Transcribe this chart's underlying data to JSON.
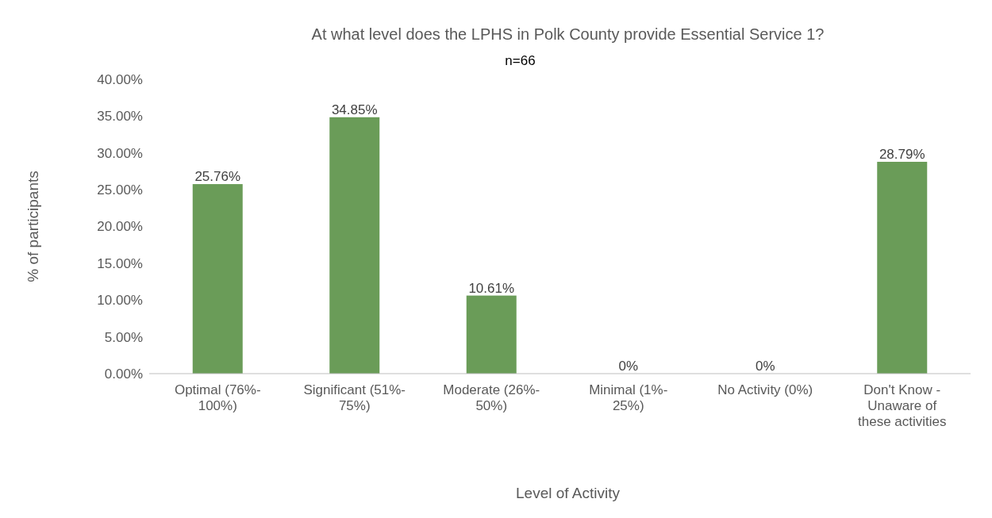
{
  "chart_data": {
    "type": "bar",
    "title": "At what level does the LPHS in Polk County provide Essential Service 1?",
    "xlabel": "Level of Activity",
    "ylabel": "% of participants",
    "annotations": [
      "n=66"
    ],
    "categories": [
      "Optimal (76%-100%)",
      "Significant (51%-75%)",
      "Moderate (26%-50%)",
      "Minimal (1%-25%)",
      "No Activity (0%)",
      "Don't Know - Unaware of these activities"
    ],
    "values": [
      25.76,
      34.85,
      10.61,
      0,
      0,
      28.79
    ],
    "value_labels": [
      "25.76%",
      "34.85%",
      "10.61%",
      "0%",
      "0%",
      "28.79%"
    ],
    "color": "#6a9c58",
    "ylim": [
      0,
      40
    ],
    "yticks": [
      {
        "value": 0,
        "label": "0.00%"
      },
      {
        "value": 5,
        "label": "5.00%"
      },
      {
        "value": 10,
        "label": "10.00%"
      },
      {
        "value": 15,
        "label": "15.00%"
      },
      {
        "value": 20,
        "label": "20.00%"
      },
      {
        "value": 25,
        "label": "25.00%"
      },
      {
        "value": 30,
        "label": "30.00%"
      },
      {
        "value": 35,
        "label": "35.00%"
      },
      {
        "value": 40,
        "label": "40.00%"
      }
    ],
    "grid": false
  }
}
